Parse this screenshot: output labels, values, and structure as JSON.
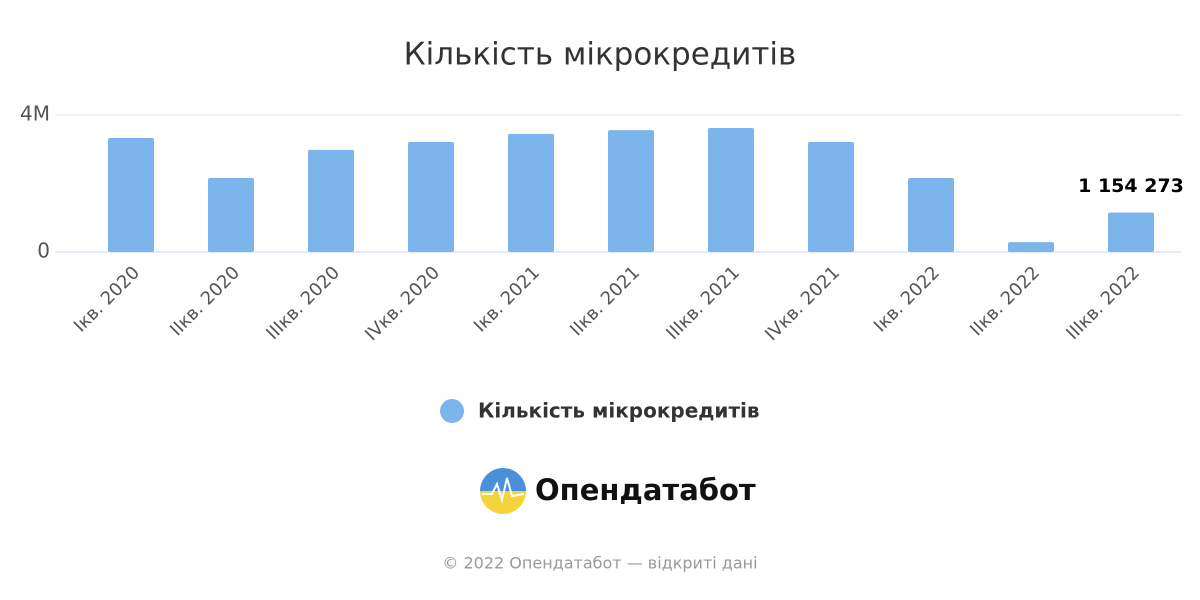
{
  "chart_data": {
    "type": "bar",
    "title": "Кількість мікрокредитів",
    "categories": [
      "Iкв. 2020",
      "IIкв. 2020",
      "IIIкв. 2020",
      "IVкв. 2020",
      "Iкв. 2021",
      "IIкв. 2021",
      "IIIкв. 2021",
      "IVкв. 2021",
      "Iкв. 2022",
      "IIкв. 2022",
      "IIIкв. 2022"
    ],
    "series": [
      {
        "name": "Кількість мікрокредитів",
        "color": "#7cb5ec",
        "values": [
          3330000,
          2160000,
          2980000,
          3210000,
          3450000,
          3560000,
          3620000,
          3210000,
          2160000,
          290000,
          1154273
        ],
        "value_labels": [
          null,
          null,
          null,
          null,
          null,
          null,
          null,
          null,
          null,
          null,
          "1 154 273"
        ]
      }
    ],
    "ylim": [
      0,
      4000000
    ],
    "yticks": [
      0,
      {
        "value": 4000000,
        "label": "4M"
      }
    ],
    "grid": true
  },
  "logo": "Опендатабот",
  "footer": "© 2022 Опендатабот — відкриті дані"
}
